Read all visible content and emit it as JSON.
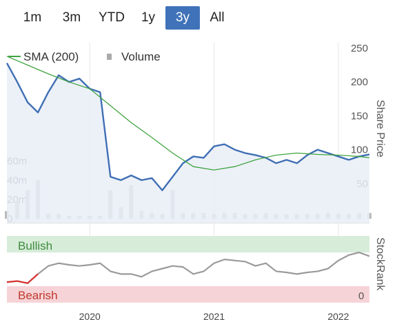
{
  "range_tabs": [
    {
      "label": "1m",
      "active": false
    },
    {
      "label": "3m",
      "active": false
    },
    {
      "label": "YTD",
      "active": false
    },
    {
      "label": "1y",
      "active": false
    },
    {
      "label": "3y",
      "active": true
    },
    {
      "label": "All",
      "active": false
    }
  ],
  "colors": {
    "price": "#3f6fb4",
    "sma": "#3fa33f",
    "volume": "#bbbbbb",
    "volume_spike": "#c8c8c8",
    "active_tab": "#3f72b8",
    "bullish_band": "#d7ecd9",
    "bearish_band": "#f6d3d7",
    "stockrank_line": "#9a9a9a",
    "stockrank_bearish": "#d9302f"
  },
  "chart_data": {
    "type": "line",
    "legend": [
      {
        "name": "SMA (200)",
        "marker": "line"
      },
      {
        "name": "Volume",
        "marker": "square"
      }
    ],
    "price_axis": {
      "label": "Share Price",
      "ticks": [
        50,
        100,
        150,
        200,
        250
      ],
      "ylim": [
        0,
        250
      ]
    },
    "volume_axis": {
      "ticks": [
        "0",
        "20m",
        "40m",
        "60m"
      ],
      "max": 75
    },
    "x_axis": {
      "ticks": [
        "2020",
        "2021",
        "2022"
      ],
      "range": [
        "2019-05",
        "2022-04"
      ]
    },
    "series": [
      {
        "name": "Price",
        "x": [
          "2019-05",
          "2019-06",
          "2019-07",
          "2019-08",
          "2019-09",
          "2019-10",
          "2019-11",
          "2019-12",
          "2020-01",
          "2020-02",
          "2020-03",
          "2020-04",
          "2020-05",
          "2020-06",
          "2020-07",
          "2020-08",
          "2020-09",
          "2020-10",
          "2020-11",
          "2020-12",
          "2021-01",
          "2021-02",
          "2021-03",
          "2021-04",
          "2021-05",
          "2021-06",
          "2021-07",
          "2021-08",
          "2021-09",
          "2021-10",
          "2021-11",
          "2021-12",
          "2022-01",
          "2022-02",
          "2022-03",
          "2022-04"
        ],
        "values": [
          228,
          200,
          170,
          155,
          185,
          210,
          200,
          205,
          190,
          185,
          60,
          55,
          62,
          55,
          58,
          40,
          60,
          80,
          90,
          88,
          105,
          108,
          100,
          95,
          92,
          88,
          80,
          85,
          80,
          92,
          100,
          95,
          90,
          85,
          90,
          93
        ]
      },
      {
        "name": "SMA (200)",
        "x": [
          "2019-05",
          "2019-07",
          "2019-09",
          "2019-11",
          "2020-01",
          "2020-03",
          "2020-05",
          "2020-07",
          "2020-09",
          "2020-11",
          "2021-01",
          "2021-03",
          "2021-05",
          "2021-07",
          "2021-09",
          "2021-11",
          "2022-01",
          "2022-03",
          "2022-04"
        ],
        "values": [
          238,
          225,
          212,
          200,
          190,
          165,
          140,
          118,
          95,
          75,
          70,
          75,
          85,
          92,
          95,
          93,
          92,
          90,
          88
        ]
      }
    ],
    "volume": {
      "unit": "m",
      "x": [
        "2019-05",
        "2019-06",
        "2019-07",
        "2019-08",
        "2019-09",
        "2019-10",
        "2019-11",
        "2019-12",
        "2020-01",
        "2020-02",
        "2020-03",
        "2020-04",
        "2020-05",
        "2020-06",
        "2020-07",
        "2020-08",
        "2020-09",
        "2020-10",
        "2020-11",
        "2020-12",
        "2021-01",
        "2021-02",
        "2021-03",
        "2021-04",
        "2021-05",
        "2021-06",
        "2021-07",
        "2021-08",
        "2021-09",
        "2021-10",
        "2021-11",
        "2021-12",
        "2022-01",
        "2022-02",
        "2022-03",
        "2022-04"
      ],
      "values": [
        8,
        18,
        30,
        40,
        5,
        5,
        3,
        3,
        3,
        3,
        30,
        12,
        35,
        8,
        6,
        5,
        30,
        6,
        6,
        6,
        5,
        6,
        6,
        5,
        5,
        6,
        5,
        5,
        5,
        5,
        5,
        6,
        5,
        5,
        6,
        6
      ]
    },
    "stockrank": {
      "bands": [
        "Bullish",
        "Bearish"
      ],
      "tick": "0",
      "x": [
        "2019-05",
        "2019-06",
        "2019-07",
        "2019-08",
        "2019-09",
        "2019-10",
        "2019-11",
        "2019-12",
        "2020-01",
        "2020-02",
        "2020-03",
        "2020-04",
        "2020-05",
        "2020-06",
        "2020-07",
        "2020-08",
        "2020-09",
        "2020-10",
        "2020-11",
        "2020-12",
        "2021-01",
        "2021-02",
        "2021-03",
        "2021-04",
        "2021-05",
        "2021-06",
        "2021-07",
        "2021-08",
        "2021-09",
        "2021-10",
        "2021-11",
        "2021-12",
        "2022-01",
        "2022-02",
        "2022-03",
        "2022-04"
      ],
      "values": [
        10,
        12,
        8,
        25,
        40,
        45,
        42,
        40,
        42,
        45,
        30,
        25,
        25,
        20,
        30,
        35,
        40,
        38,
        25,
        30,
        45,
        52,
        50,
        48,
        40,
        45,
        30,
        28,
        25,
        28,
        30,
        35,
        50,
        60,
        65,
        58
      ]
    }
  }
}
